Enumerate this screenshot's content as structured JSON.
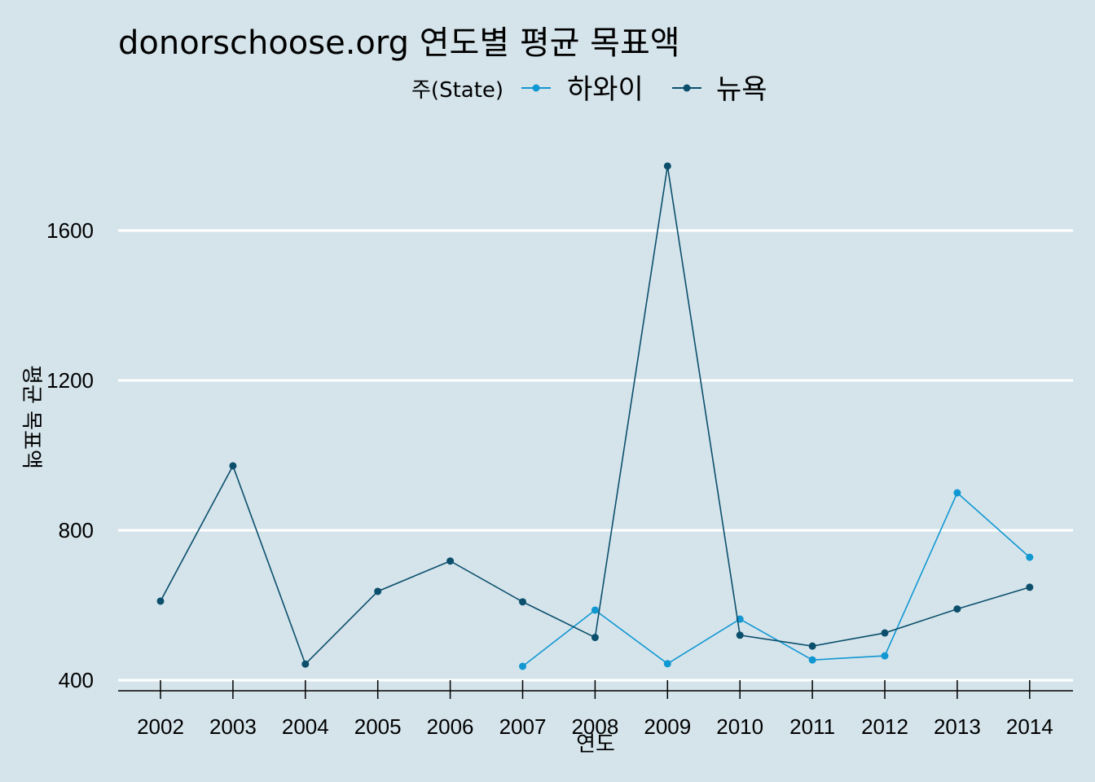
{
  "chart_data": {
    "type": "line",
    "title": "donorschoose.org 연도별 평균 목표액",
    "xlabel": "연도",
    "ylabel": "평균 목표액",
    "legend_title": "주(State)",
    "legend_position": "top",
    "grid": "horizontal",
    "categories": [
      "2002",
      "2003",
      "2004",
      "2005",
      "2006",
      "2007",
      "2008",
      "2009",
      "2010",
      "2011",
      "2012",
      "2013",
      "2014"
    ],
    "yticks": [
      400,
      800,
      1200,
      1600
    ],
    "ylim": [
      370,
      1800
    ],
    "series": [
      {
        "name": "하와이",
        "color": "#1197d2",
        "values": [
          null,
          null,
          null,
          null,
          null,
          437,
          587,
          444,
          563,
          454,
          465,
          900,
          728
        ]
      },
      {
        "name": "뉴욕",
        "color": "#0b4f6c",
        "values": [
          611,
          972,
          443,
          637,
          718,
          609,
          514,
          1772,
          520,
          491,
          526,
          590,
          648
        ]
      }
    ]
  }
}
